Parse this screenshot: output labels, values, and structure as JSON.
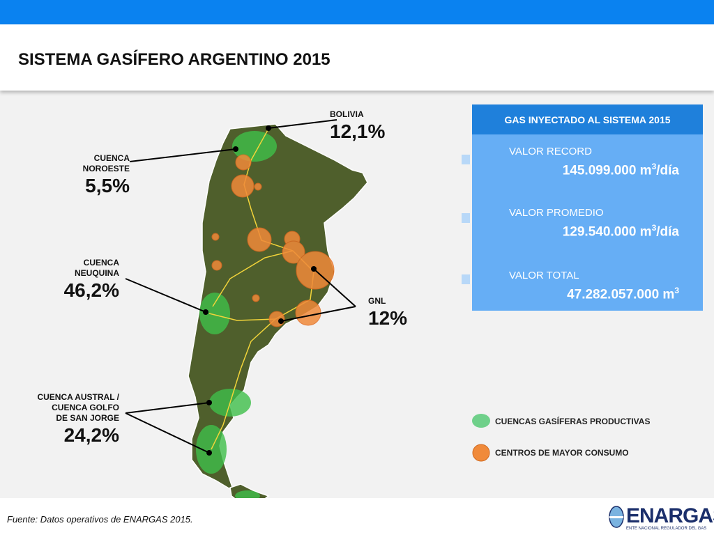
{
  "header": {
    "title": "SISTEMA GASÍFERO ARGENTINO 2015"
  },
  "callouts": [
    {
      "label": [
        "BOLIVIA"
      ],
      "value": "12,1%"
    },
    {
      "label": [
        "CUENCA",
        "NOROESTE"
      ],
      "value": "5,5%"
    },
    {
      "label": [
        "CUENCA",
        "NEUQUINA"
      ],
      "value": "46,2%"
    },
    {
      "label": [
        "GNL"
      ],
      "value": "12%"
    },
    {
      "label": [
        "CUENCA AUSTRAL /",
        "CUENCA GOLFO",
        "DE SAN JORGE"
      ],
      "value": "24,2%"
    }
  ],
  "panel": {
    "title": "GAS INYECTADO AL SISTEMA 2015",
    "items": [
      {
        "label": "VALOR RECORD",
        "value": "145.099.000 m",
        "sup": "3",
        "suffix": "/día"
      },
      {
        "label": "VALOR PROMEDIO",
        "value": "129.540.000 m",
        "sup": "3",
        "suffix": "/día"
      },
      {
        "label": "VALOR TOTAL",
        "value": "47.282.057.000 m",
        "sup": "3"
      }
    ]
  },
  "legend": [
    "CUENCAS GASÍFERAS PRODUCTIVAS",
    "CENTROS DE MAYOR CONSUMO"
  ],
  "footer": {
    "source": "Fuente: Datos operativos de ENARGAS 2015.",
    "logo": "ENARGAS",
    "logo_subtitle": "ENTE NACIONAL REGULADOR DEL GAS"
  }
}
